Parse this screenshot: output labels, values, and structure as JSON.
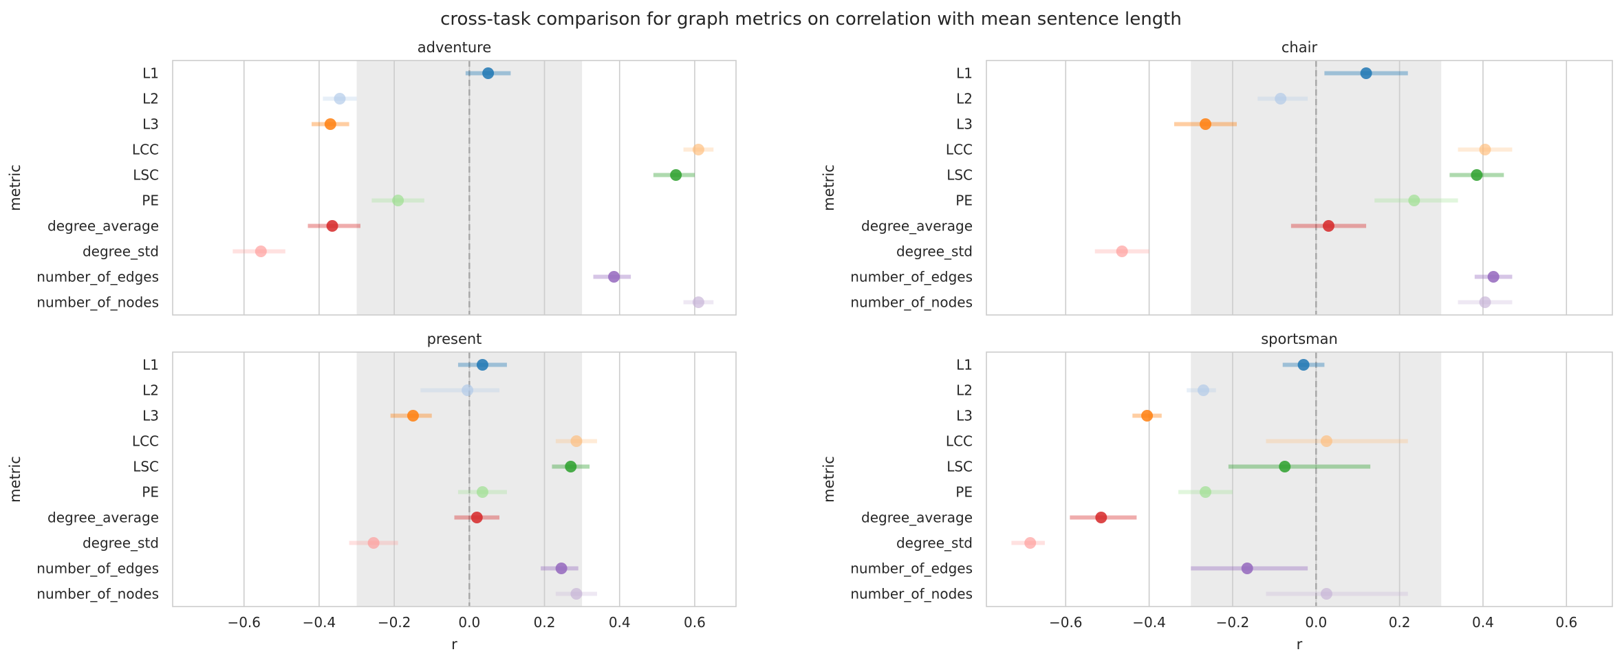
{
  "title": "cross-task comparison for graph metrics on correlation with mean sentence length",
  "chart_data": [
    {
      "type": "scatter",
      "title": "adventure",
      "xlabel": "",
      "ylabel": "metric",
      "categories": [
        "L1",
        "L2",
        "L3",
        "LCC",
        "LSC",
        "PE",
        "degree_average",
        "degree_std",
        "number_of_edges",
        "number_of_nodes"
      ],
      "values": [
        0.05,
        -0.345,
        -0.37,
        0.61,
        0.55,
        -0.19,
        -0.365,
        -0.555,
        0.385,
        0.61
      ],
      "ci": [
        [
          -0.01,
          0.11
        ],
        [
          -0.39,
          -0.3
        ],
        [
          -0.42,
          -0.32
        ],
        [
          0.57,
          0.65
        ],
        [
          0.49,
          0.6
        ],
        [
          -0.26,
          -0.12
        ],
        [
          -0.43,
          -0.29
        ],
        [
          -0.63,
          -0.49
        ],
        [
          0.33,
          0.43
        ],
        [
          0.57,
          0.65
        ]
      ],
      "xlim": [
        -0.79,
        0.71
      ],
      "xticks": [
        "−0.6",
        "−0.4",
        "−0.2",
        "0.0",
        "0.2",
        "0.4",
        "0.6"
      ],
      "tick_values": [
        -0.6,
        -0.4,
        -0.2,
        0.0,
        0.2,
        0.4,
        0.6
      ],
      "shaded_band": [
        -0.3,
        0.3
      ],
      "grid": true
    },
    {
      "type": "scatter",
      "title": "chair",
      "xlabel": "",
      "ylabel": "metric",
      "categories": [
        "L1",
        "L2",
        "L3",
        "LCC",
        "LSC",
        "PE",
        "degree_average",
        "degree_std",
        "number_of_edges",
        "number_of_nodes"
      ],
      "values": [
        0.12,
        -0.085,
        -0.265,
        0.405,
        0.385,
        0.235,
        0.03,
        -0.465,
        0.425,
        0.405
      ],
      "ci": [
        [
          0.02,
          0.22
        ],
        [
          -0.14,
          -0.02
        ],
        [
          -0.34,
          -0.19
        ],
        [
          0.34,
          0.47
        ],
        [
          0.32,
          0.45
        ],
        [
          0.14,
          0.34
        ],
        [
          -0.06,
          0.12
        ],
        [
          -0.53,
          -0.4
        ],
        [
          0.38,
          0.47
        ],
        [
          0.34,
          0.47
        ]
      ],
      "xlim": [
        -0.79,
        0.71
      ],
      "xticks": [
        "−0.6",
        "−0.4",
        "−0.2",
        "0.0",
        "0.2",
        "0.4",
        "0.6"
      ],
      "tick_values": [
        -0.6,
        -0.4,
        -0.2,
        0.0,
        0.2,
        0.4,
        0.6
      ],
      "shaded_band": [
        -0.3,
        0.3
      ],
      "grid": true
    },
    {
      "type": "scatter",
      "title": "present",
      "xlabel": "r",
      "ylabel": "metric",
      "categories": [
        "L1",
        "L2",
        "L3",
        "LCC",
        "LSC",
        "PE",
        "degree_average",
        "degree_std",
        "number_of_edges",
        "number_of_nodes"
      ],
      "values": [
        0.035,
        -0.005,
        -0.15,
        0.285,
        0.27,
        0.035,
        0.02,
        -0.255,
        0.245,
        0.285
      ],
      "ci": [
        [
          -0.03,
          0.1
        ],
        [
          -0.13,
          0.08
        ],
        [
          -0.21,
          -0.1
        ],
        [
          0.23,
          0.34
        ],
        [
          0.22,
          0.32
        ],
        [
          -0.03,
          0.1
        ],
        [
          -0.04,
          0.08
        ],
        [
          -0.32,
          -0.19
        ],
        [
          0.19,
          0.29
        ],
        [
          0.23,
          0.34
        ]
      ],
      "xlim": [
        -0.79,
        0.71
      ],
      "xticks": [
        "−0.6",
        "−0.4",
        "−0.2",
        "0.0",
        "0.2",
        "0.4",
        "0.6"
      ],
      "tick_values": [
        -0.6,
        -0.4,
        -0.2,
        0.0,
        0.2,
        0.4,
        0.6
      ],
      "shaded_band": [
        -0.3,
        0.3
      ],
      "grid": true
    },
    {
      "type": "scatter",
      "title": "sportsman",
      "xlabel": "r",
      "ylabel": "metric",
      "categories": [
        "L1",
        "L2",
        "L3",
        "LCC",
        "LSC",
        "PE",
        "degree_average",
        "degree_std",
        "number_of_edges",
        "number_of_nodes"
      ],
      "values": [
        -0.03,
        -0.27,
        -0.405,
        0.025,
        -0.075,
        -0.265,
        -0.515,
        -0.685,
        -0.165,
        0.025
      ],
      "ci": [
        [
          -0.08,
          0.02
        ],
        [
          -0.31,
          -0.24
        ],
        [
          -0.44,
          -0.37
        ],
        [
          -0.12,
          0.22
        ],
        [
          -0.21,
          0.13
        ],
        [
          -0.33,
          -0.2
        ],
        [
          -0.59,
          -0.43
        ],
        [
          -0.73,
          -0.65
        ],
        [
          -0.3,
          -0.02
        ],
        [
          -0.12,
          0.22
        ]
      ],
      "xlim": [
        -0.79,
        0.71
      ],
      "xticks": [
        "−0.6",
        "−0.4",
        "−0.2",
        "0.0",
        "0.2",
        "0.4",
        "0.6"
      ],
      "tick_values": [
        -0.6,
        -0.4,
        -0.2,
        0.0,
        0.2,
        0.4,
        0.6
      ],
      "shaded_band": [
        -0.3,
        0.3
      ],
      "grid": true
    }
  ],
  "palette": [
    "#1f77b4",
    "#aec7e8",
    "#ff7f0e",
    "#ffbb78",
    "#2ca02c",
    "#98df8a",
    "#d62728",
    "#ff9896",
    "#9467bd",
    "#c5b0d5"
  ]
}
